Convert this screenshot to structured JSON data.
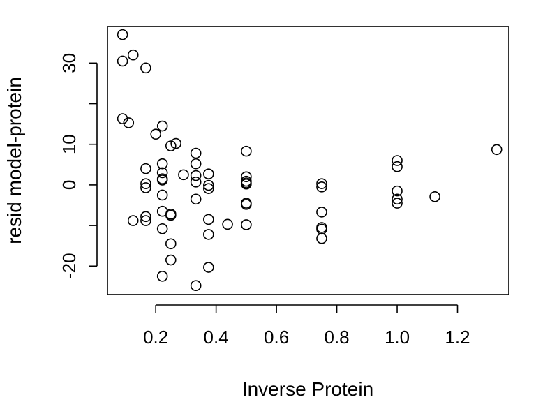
{
  "chart_data": {
    "type": "scatter",
    "title": "",
    "xlabel": "Inverse Protein",
    "ylabel": "resid model-protein",
    "xlim": [
      0.04,
      1.37
    ],
    "ylim": [
      -27,
      39
    ],
    "x_ticks": [
      0.2,
      0.4,
      0.6,
      0.8,
      1.0,
      1.2
    ],
    "x_tick_labels": [
      "0.2",
      "0.4",
      "0.6",
      "0.8",
      "1.0",
      "1.2"
    ],
    "y_ticks": [
      -20,
      -10,
      0,
      10,
      20,
      30
    ],
    "y_tick_labels": [
      "-20",
      "",
      "0",
      "10",
      "",
      "30"
    ],
    "marker": "open-circle",
    "grid": false,
    "legend": "none",
    "points": [
      {
        "x": 0.09,
        "y": 37.0
      },
      {
        "x": 0.09,
        "y": 30.5
      },
      {
        "x": 0.09,
        "y": 16.3
      },
      {
        "x": 0.11,
        "y": 15.3
      },
      {
        "x": 0.125,
        "y": 32.0
      },
      {
        "x": 0.125,
        "y": -8.8
      },
      {
        "x": 0.167,
        "y": 28.8
      },
      {
        "x": 0.167,
        "y": 4.0
      },
      {
        "x": 0.167,
        "y": 0.3
      },
      {
        "x": 0.167,
        "y": -0.7
      },
      {
        "x": 0.167,
        "y": -7.8
      },
      {
        "x": 0.167,
        "y": -8.8
      },
      {
        "x": 0.2,
        "y": 12.5
      },
      {
        "x": 0.222,
        "y": 14.5
      },
      {
        "x": 0.222,
        "y": 5.2
      },
      {
        "x": 0.222,
        "y": 3.0
      },
      {
        "x": 0.222,
        "y": 1.5
      },
      {
        "x": 0.222,
        "y": 1.2
      },
      {
        "x": 0.222,
        "y": -2.5
      },
      {
        "x": 0.222,
        "y": -6.5
      },
      {
        "x": 0.222,
        "y": -10.8
      },
      {
        "x": 0.222,
        "y": -22.5
      },
      {
        "x": 0.25,
        "y": 9.6
      },
      {
        "x": 0.25,
        "y": -7.2
      },
      {
        "x": 0.25,
        "y": -7.5
      },
      {
        "x": 0.25,
        "y": -14.5
      },
      {
        "x": 0.25,
        "y": -18.5
      },
      {
        "x": 0.267,
        "y": 10.2
      },
      {
        "x": 0.292,
        "y": 2.5
      },
      {
        "x": 0.333,
        "y": 7.8
      },
      {
        "x": 0.333,
        "y": 5.2
      },
      {
        "x": 0.333,
        "y": 2.3
      },
      {
        "x": 0.333,
        "y": 0.7
      },
      {
        "x": 0.333,
        "y": -3.5
      },
      {
        "x": 0.333,
        "y": -24.8
      },
      {
        "x": 0.375,
        "y": 2.7
      },
      {
        "x": 0.375,
        "y": -0.1
      },
      {
        "x": 0.375,
        "y": -0.9
      },
      {
        "x": 0.375,
        "y": -8.5
      },
      {
        "x": 0.375,
        "y": -12.2
      },
      {
        "x": 0.375,
        "y": -20.3
      },
      {
        "x": 0.438,
        "y": -9.7
      },
      {
        "x": 0.5,
        "y": 8.3
      },
      {
        "x": 0.5,
        "y": 2.0
      },
      {
        "x": 0.5,
        "y": 0.9
      },
      {
        "x": 0.5,
        "y": 0.5
      },
      {
        "x": 0.5,
        "y": 0.2
      },
      {
        "x": 0.5,
        "y": -4.5
      },
      {
        "x": 0.5,
        "y": -4.8
      },
      {
        "x": 0.5,
        "y": -9.8
      },
      {
        "x": 0.75,
        "y": 0.3
      },
      {
        "x": 0.75,
        "y": -0.5
      },
      {
        "x": 0.75,
        "y": -6.7
      },
      {
        "x": 0.75,
        "y": -10.5
      },
      {
        "x": 0.75,
        "y": -10.9
      },
      {
        "x": 0.75,
        "y": -13.2
      },
      {
        "x": 1.0,
        "y": 6.0
      },
      {
        "x": 1.0,
        "y": 4.5
      },
      {
        "x": 1.0,
        "y": -1.5
      },
      {
        "x": 1.0,
        "y": -3.5
      },
      {
        "x": 1.0,
        "y": -4.5
      },
      {
        "x": 1.125,
        "y": -2.9
      },
      {
        "x": 1.33,
        "y": 8.7
      }
    ]
  }
}
